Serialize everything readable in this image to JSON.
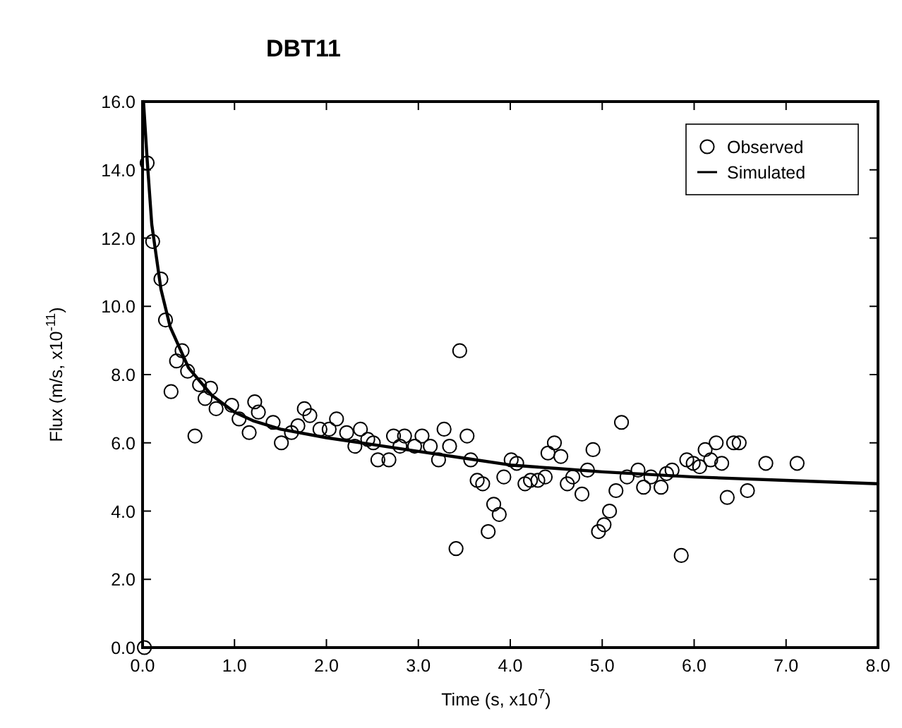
{
  "chart_data": {
    "type": "scatter",
    "title": "DBT11",
    "xlabel": "Time (s, x10$^{7}$)",
    "ylabel": "Flux (m/s, x10$^{-11}$)",
    "xlim": [
      0,
      8
    ],
    "ylim": [
      0,
      16
    ],
    "xticks": [
      {
        "value": 0,
        "label": "0.0"
      },
      {
        "value": 1,
        "label": "1.0"
      },
      {
        "value": 2,
        "label": "2.0"
      },
      {
        "value": 3,
        "label": "3.0"
      },
      {
        "value": 4,
        "label": "4.0"
      },
      {
        "value": 5,
        "label": "5.0"
      },
      {
        "value": 6,
        "label": "6.0"
      },
      {
        "value": 7,
        "label": "7.0"
      },
      {
        "value": 8,
        "label": "8.0"
      }
    ],
    "yticks": [
      {
        "value": 0,
        "label": "0.0"
      },
      {
        "value": 2,
        "label": "2.0"
      },
      {
        "value": 4,
        "label": "4.0"
      },
      {
        "value": 6,
        "label": "6.0"
      },
      {
        "value": 8,
        "label": "8.0"
      },
      {
        "value": 10,
        "label": "10.0"
      },
      {
        "value": 12,
        "label": "12.0"
      },
      {
        "value": 14,
        "label": "14.0"
      },
      {
        "value": 16,
        "label": "16.0"
      }
    ],
    "grid": false,
    "legend": "top right",
    "series": [
      {
        "name": "Observed",
        "marker": "circle",
        "color": "#000000",
        "x": [
          0.02,
          0.05,
          0.11,
          0.2,
          0.25,
          0.43,
          0.37,
          0.49,
          0.31,
          0.62,
          0.74,
          0.68,
          0.8,
          0.97,
          0.57,
          1.05,
          1.16,
          1.22,
          1.26,
          1.42,
          1.51,
          1.62,
          1.76,
          1.82,
          1.69,
          1.93,
          2.11,
          2.03,
          2.22,
          2.37,
          2.45,
          2.31,
          2.51,
          2.56,
          2.68,
          2.73,
          2.8,
          2.85,
          2.96,
          3.04,
          3.13,
          3.22,
          3.28,
          3.34,
          3.45,
          3.53,
          3.57,
          3.64,
          3.7,
          3.82,
          3.88,
          3.76,
          3.41,
          3.93,
          4.01,
          4.07,
          4.16,
          4.22,
          4.3,
          4.38,
          4.41,
          4.48,
          4.55,
          4.62,
          4.68,
          4.78,
          4.84,
          4.9,
          4.96,
          5.02,
          5.08,
          5.15,
          5.21,
          5.27,
          5.39,
          5.45,
          5.53,
          5.64,
          5.7,
          5.76,
          5.86,
          5.92,
          5.99,
          6.06,
          6.12,
          6.18,
          6.24,
          6.3,
          6.36,
          6.43,
          6.49,
          6.58,
          6.78,
          7.12
        ],
        "values": [
          0.0,
          14.2,
          11.9,
          10.8,
          9.6,
          8.7,
          8.4,
          8.1,
          7.5,
          7.7,
          7.6,
          7.3,
          7.0,
          7.1,
          6.2,
          6.7,
          6.3,
          7.2,
          6.9,
          6.6,
          6.0,
          6.3,
          7.0,
          6.8,
          6.5,
          6.4,
          6.7,
          6.4,
          6.3,
          6.4,
          6.1,
          5.9,
          6.0,
          5.5,
          5.5,
          6.2,
          5.9,
          6.2,
          5.9,
          6.2,
          5.9,
          5.5,
          6.4,
          5.9,
          8.7,
          6.2,
          5.5,
          4.9,
          4.8,
          4.2,
          3.9,
          3.4,
          2.9,
          5.0,
          5.5,
          5.4,
          4.8,
          4.9,
          4.9,
          5.0,
          5.7,
          6.0,
          5.6,
          4.8,
          5.0,
          4.5,
          5.2,
          5.8,
          3.4,
          3.6,
          4.0,
          4.6,
          6.6,
          5.0,
          5.2,
          4.7,
          5.0,
          4.7,
          5.1,
          5.2,
          2.7,
          5.5,
          5.4,
          5.3,
          5.8,
          5.5,
          6.0,
          5.4,
          4.4,
          6.0,
          6.0,
          4.6,
          5.4,
          5.4
        ]
      },
      {
        "name": "Simulated",
        "type": "line",
        "marker": "none",
        "line_style": "solid",
        "color": "#000000",
        "x": [
          0.01,
          0.05,
          0.1,
          0.2,
          0.3,
          0.5,
          0.75,
          1.0,
          1.2,
          1.5,
          2.0,
          2.5,
          3.0,
          3.5,
          4.0,
          4.5,
          5.0,
          6.0,
          7.0,
          8.0
        ],
        "values": [
          16,
          14.3,
          12.4,
          10.5,
          9.4,
          8.2,
          7.4,
          6.9,
          6.65,
          6.4,
          6.15,
          5.95,
          5.75,
          5.55,
          5.35,
          5.25,
          5.15,
          5.0,
          4.9,
          4.8
        ]
      }
    ]
  }
}
